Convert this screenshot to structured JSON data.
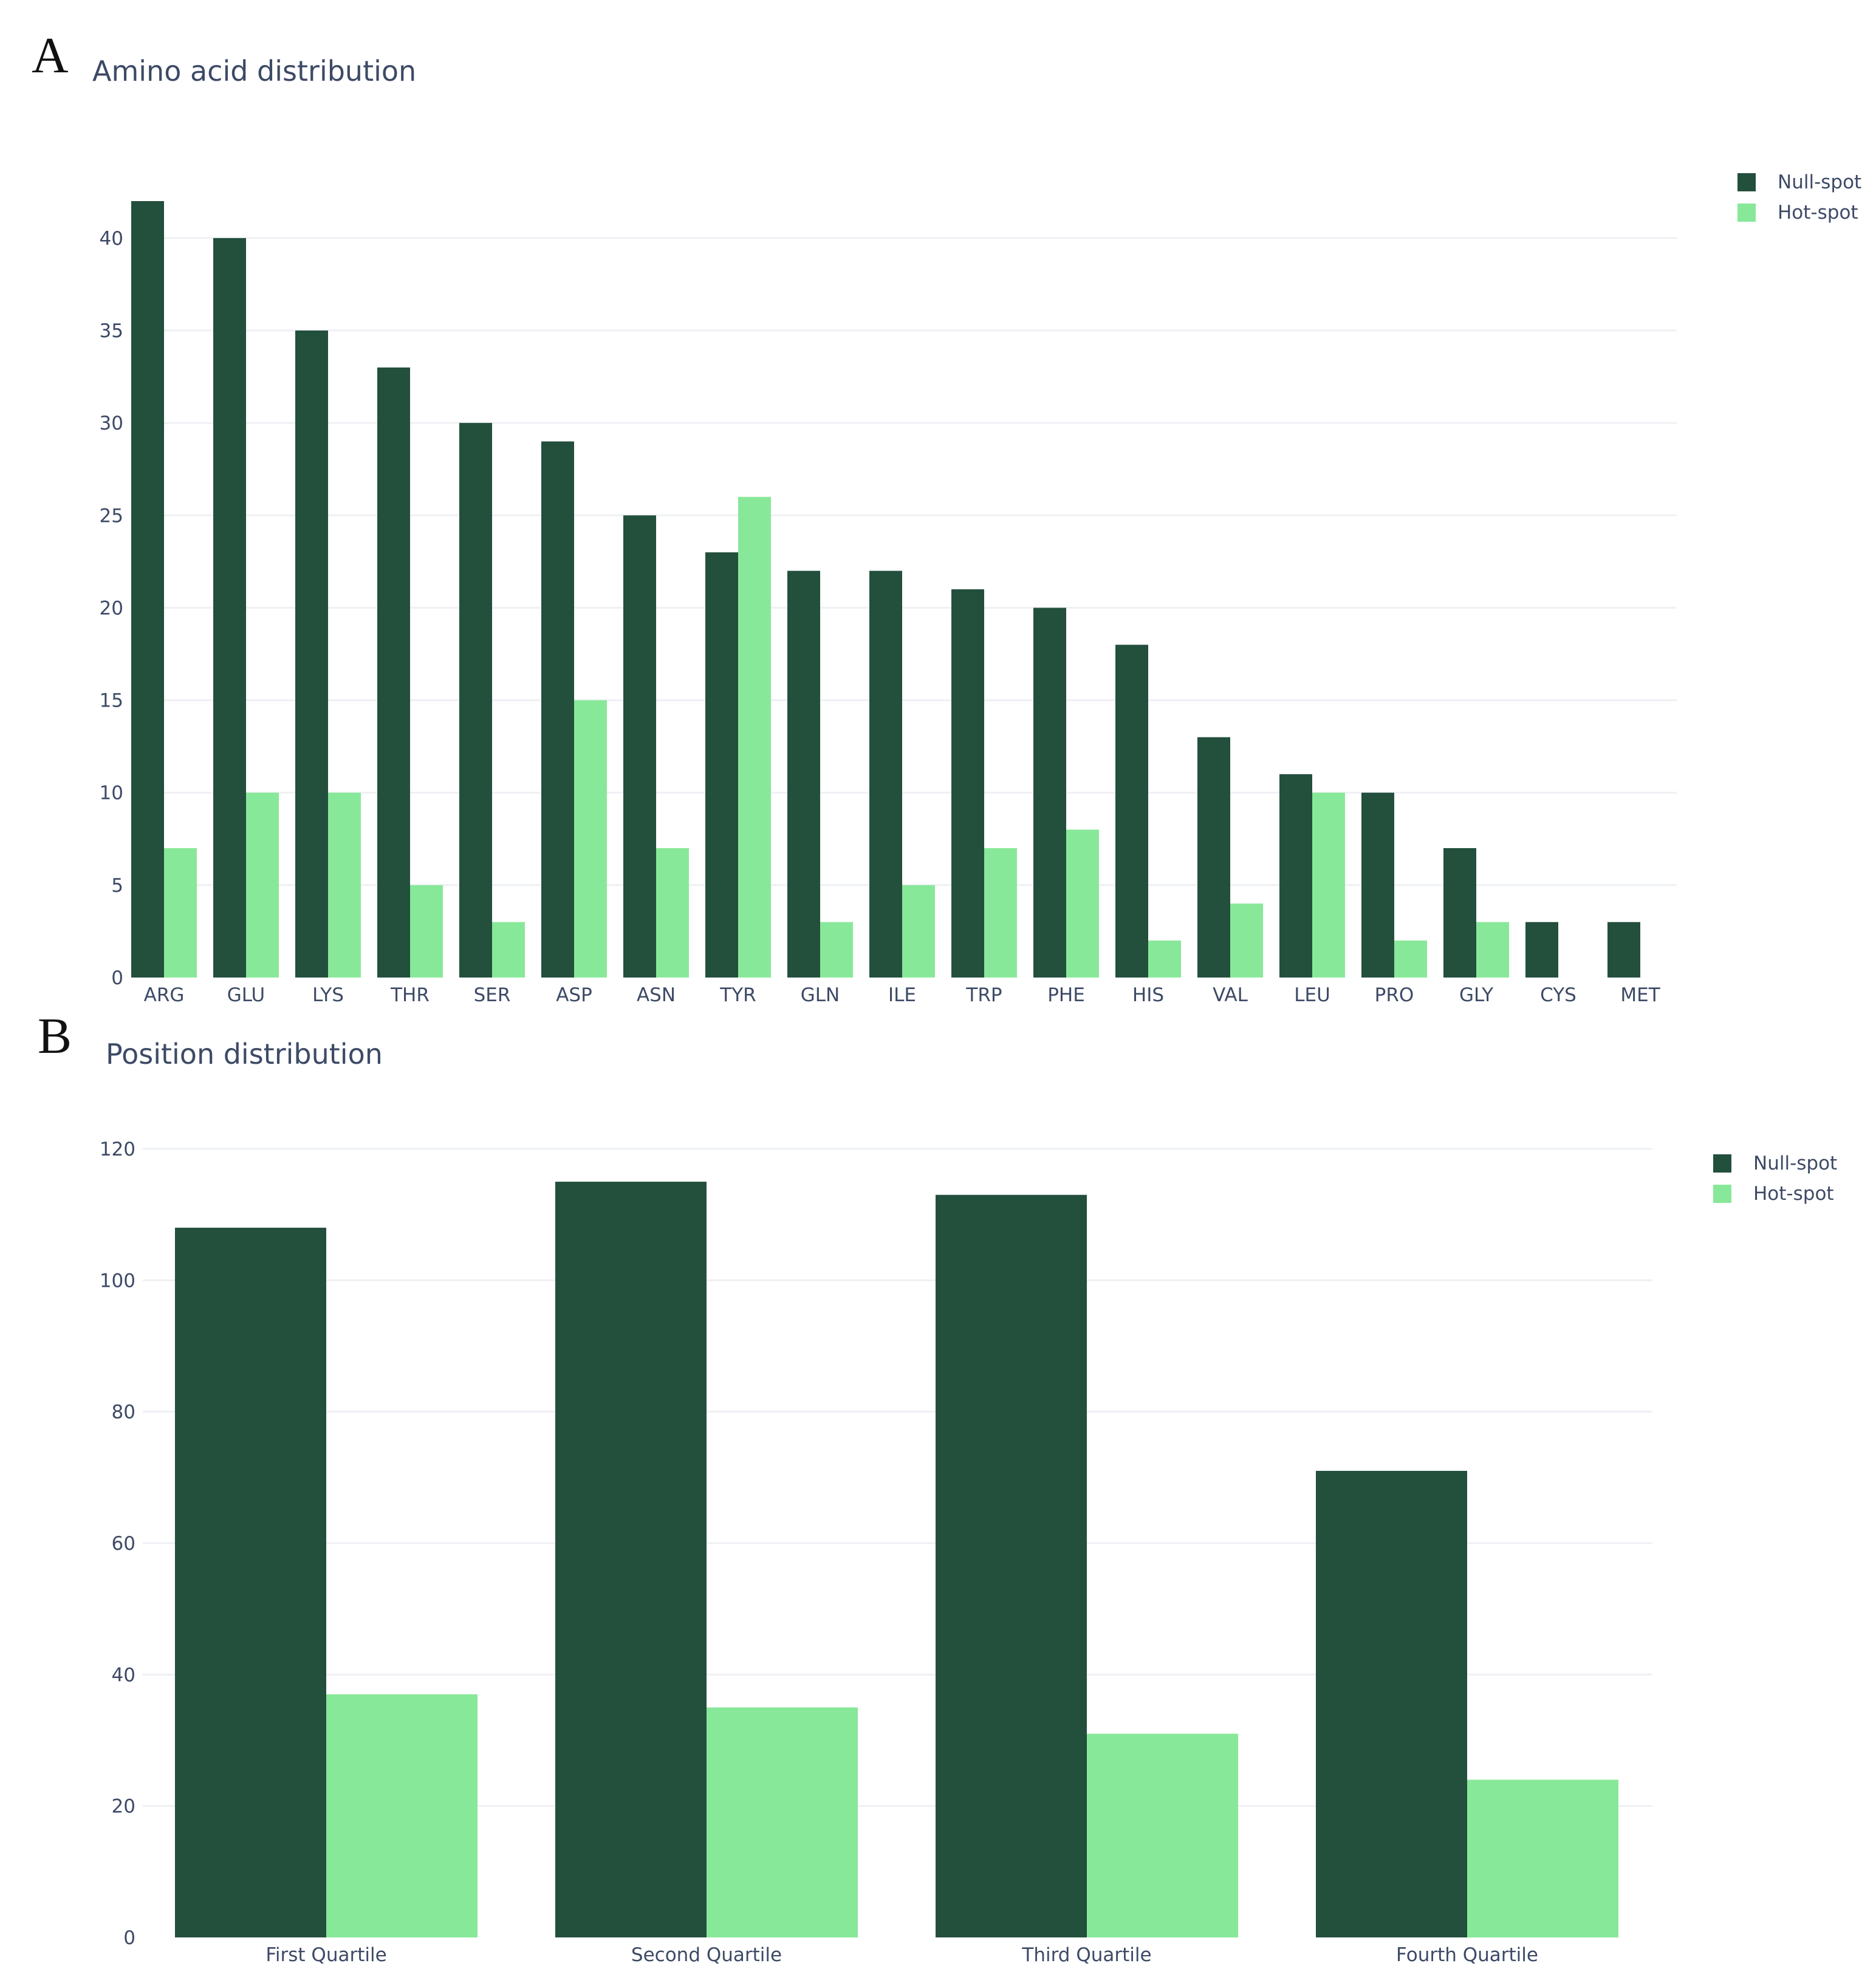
{
  "figure": {
    "panels": [
      {
        "letter": "A",
        "title": "Amino acid distribution"
      },
      {
        "letter": "B",
        "title": "Position distribution"
      }
    ]
  },
  "colors": {
    "null_spot": "#234f3d",
    "hot_spot": "#88e899",
    "grid": "#eef0f4",
    "text": "#3d4a66"
  },
  "chart_data": [
    {
      "type": "bar",
      "title": "Amino acid distribution",
      "xlabel": "",
      "ylabel": "",
      "ylim": [
        0,
        42
      ],
      "yticks": [
        0,
        5,
        10,
        15,
        20,
        25,
        30,
        35,
        40
      ],
      "grid": true,
      "legend_position": "top-right",
      "categories": [
        "ARG",
        "GLU",
        "LYS",
        "THR",
        "SER",
        "ASP",
        "ASN",
        "TYR",
        "GLN",
        "ILE",
        "TRP",
        "PHE",
        "HIS",
        "VAL",
        "LEU",
        "PRO",
        "GLY",
        "CYS",
        "MET"
      ],
      "series": [
        {
          "name": "Null-spot",
          "color": "#234f3d",
          "values": [
            42,
            40,
            35,
            33,
            30,
            29,
            25,
            23,
            22,
            22,
            21,
            20,
            18,
            13,
            11,
            10,
            7,
            3,
            3
          ]
        },
        {
          "name": "Hot-spot",
          "color": "#88e899",
          "values": [
            7,
            10,
            10,
            5,
            3,
            15,
            7,
            26,
            3,
            5,
            7,
            8,
            2,
            4,
            10,
            2,
            3,
            0,
            0
          ]
        }
      ]
    },
    {
      "type": "bar",
      "title": "Position distribution",
      "xlabel": "",
      "ylabel": "",
      "ylim": [
        0,
        120
      ],
      "yticks": [
        0,
        20,
        40,
        60,
        80,
        100,
        120
      ],
      "grid": true,
      "legend_position": "top-right",
      "categories": [
        "First Quartile",
        "Second Quartile",
        "Third Quartile",
        "Fourth Quartile"
      ],
      "series": [
        {
          "name": "Null-spot",
          "color": "#234f3d",
          "values": [
            108,
            115,
            113,
            71
          ]
        },
        {
          "name": "Hot-spot",
          "color": "#88e899",
          "values": [
            37,
            35,
            31,
            24
          ]
        }
      ]
    }
  ]
}
